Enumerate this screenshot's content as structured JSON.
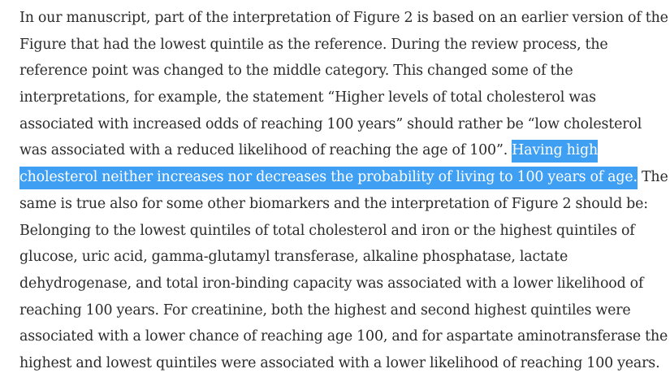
{
  "lines": [
    {
      "pre": "In our manuscript, part of the interpretation of Figure 2 is based on an earlier version of the",
      "hl": "",
      "post": ""
    },
    {
      "pre": "Figure that had the lowest quintile as the reference. During the review process, the",
      "hl": "",
      "post": ""
    },
    {
      "pre": "reference point was changed to the middle category. This changed some of the",
      "hl": "",
      "post": ""
    },
    {
      "pre": "interpretations, for example, the statement “Higher levels of total cholesterol was",
      "hl": "",
      "post": ""
    },
    {
      "pre": "associated with increased odds of reaching 100 years” should rather be “low cholesterol",
      "hl": "",
      "post": ""
    },
    {
      "pre": "was associated with a reduced likelihood of reaching the age of 100”. ",
      "hl": "Having high",
      "post": ""
    },
    {
      "pre": "",
      "hl": "cholesterol neither increases nor decreases the probability of living to 100 years of age.",
      "post": " The"
    },
    {
      "pre": "same is true also for some other biomarkers and the interpretation of Figure 2 should be:",
      "hl": "",
      "post": ""
    },
    {
      "pre": "Belonging to the lowest quintiles of total cholesterol and iron or the highest quintiles of",
      "hl": "",
      "post": ""
    },
    {
      "pre": "glucose, uric acid, gamma-glutamyl transferase, alkaline phosphatase, lactate",
      "hl": "",
      "post": ""
    },
    {
      "pre": "dehydrogenase, and total iron-binding capacity was associated with a lower likelihood of",
      "hl": "",
      "post": ""
    },
    {
      "pre": "reaching 100 years. For creatinine, both the highest and second highest quintiles were",
      "hl": "",
      "post": ""
    },
    {
      "pre": "associated with a lower chance of reaching age 100, and for aspartate aminotransferase the",
      "hl": "",
      "post": ""
    },
    {
      "pre": "highest and lowest quintiles were associated with a lower likelihood of reaching 100 years.",
      "hl": "",
      "post": ""
    }
  ],
  "colors": {
    "text": "#2b2b2b",
    "highlight_bg": "#3f9ff3",
    "highlight_text": "#ffffff"
  }
}
